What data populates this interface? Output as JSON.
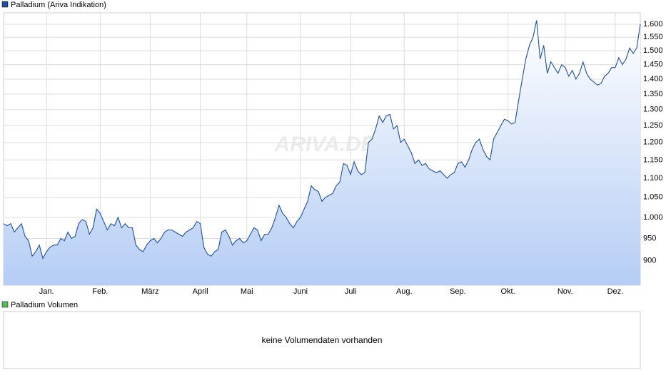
{
  "chart_data": {
    "type": "line",
    "log_scale": true,
    "grid": true,
    "watermark": "ARIVA.DE",
    "series": [
      {
        "name": "Palladium (Ariva Indikation)",
        "color": "#1f4f9e",
        "values": [
          985,
          980,
          985,
          965,
          975,
          985,
          955,
          945,
          910,
          920,
          935,
          905,
          920,
          930,
          935,
          935,
          950,
          945,
          965,
          950,
          955,
          985,
          995,
          990,
          960,
          975,
          1020,
          1010,
          990,
          970,
          985,
          980,
          1000,
          975,
          985,
          975,
          975,
          935,
          925,
          920,
          935,
          945,
          950,
          940,
          950,
          965,
          970,
          970,
          965,
          960,
          955,
          965,
          970,
          975,
          990,
          985,
          930,
          915,
          910,
          920,
          925,
          965,
          970,
          955,
          935,
          945,
          950,
          940,
          945,
          960,
          975,
          970,
          945,
          960,
          960,
          975,
          1000,
          1030,
          1010,
          1000,
          985,
          975,
          990,
          1000,
          1020,
          1040,
          1080,
          1070,
          1065,
          1040,
          1050,
          1055,
          1060,
          1080,
          1090,
          1140,
          1135,
          1110,
          1145,
          1120,
          1110,
          1115,
          1200,
          1210,
          1240,
          1280,
          1260,
          1280,
          1285,
          1240,
          1250,
          1200,
          1210,
          1190,
          1170,
          1140,
          1150,
          1135,
          1140,
          1125,
          1120,
          1115,
          1120,
          1110,
          1100,
          1110,
          1115,
          1140,
          1145,
          1130,
          1150,
          1180,
          1200,
          1210,
          1180,
          1160,
          1150,
          1210,
          1230,
          1250,
          1270,
          1265,
          1255,
          1260,
          1330,
          1400,
          1470,
          1520,
          1550,
          1615,
          1470,
          1520,
          1420,
          1460,
          1440,
          1420,
          1450,
          1440,
          1410,
          1430,
          1400,
          1420,
          1460,
          1420,
          1400,
          1390,
          1380,
          1385,
          1410,
          1420,
          1440,
          1440,
          1475,
          1450,
          1470,
          1510,
          1490,
          1510,
          1600
        ]
      }
    ],
    "xlim": [
      0,
      178
    ],
    "xticks": [
      {
        "value": 12,
        "label": "Jan."
      },
      {
        "value": 27,
        "label": "Feb."
      },
      {
        "value": 41,
        "label": "März"
      },
      {
        "value": 55,
        "label": "April"
      },
      {
        "value": 68,
        "label": "Mai"
      },
      {
        "value": 83,
        "label": "Juni"
      },
      {
        "value": 97,
        "label": "Juli"
      },
      {
        "value": 112,
        "label": "Aug."
      },
      {
        "value": 127,
        "label": "Sep."
      },
      {
        "value": 141,
        "label": "Okt."
      },
      {
        "value": 157,
        "label": "Nov."
      },
      {
        "value": 171,
        "label": "Dez."
      }
    ],
    "ylim": [
      848,
      1645
    ],
    "yticks": [
      900,
      950,
      {
        "value": 1000,
        "label": "1.000"
      },
      {
        "value": 1050,
        "label": "1.050"
      },
      {
        "value": 1100,
        "label": "1.100"
      },
      {
        "value": 1150,
        "label": "1.150"
      },
      {
        "value": 1200,
        "label": "1.200"
      },
      {
        "value": 1250,
        "label": "1.250"
      },
      {
        "value": 1300,
        "label": "1.300"
      },
      {
        "value": 1350,
        "label": "1.350"
      },
      {
        "value": 1400,
        "label": "1.400"
      },
      {
        "value": 1450,
        "label": "1.450"
      },
      {
        "value": 1500,
        "label": "1.500"
      },
      {
        "value": 1550,
        "label": "1.550"
      },
      {
        "value": 1600,
        "label": "1.600"
      }
    ]
  },
  "volume_panel": {
    "name": "Palladium Volumen",
    "color": "#5cb85c",
    "message": "keine Volumendaten vorhanden"
  }
}
